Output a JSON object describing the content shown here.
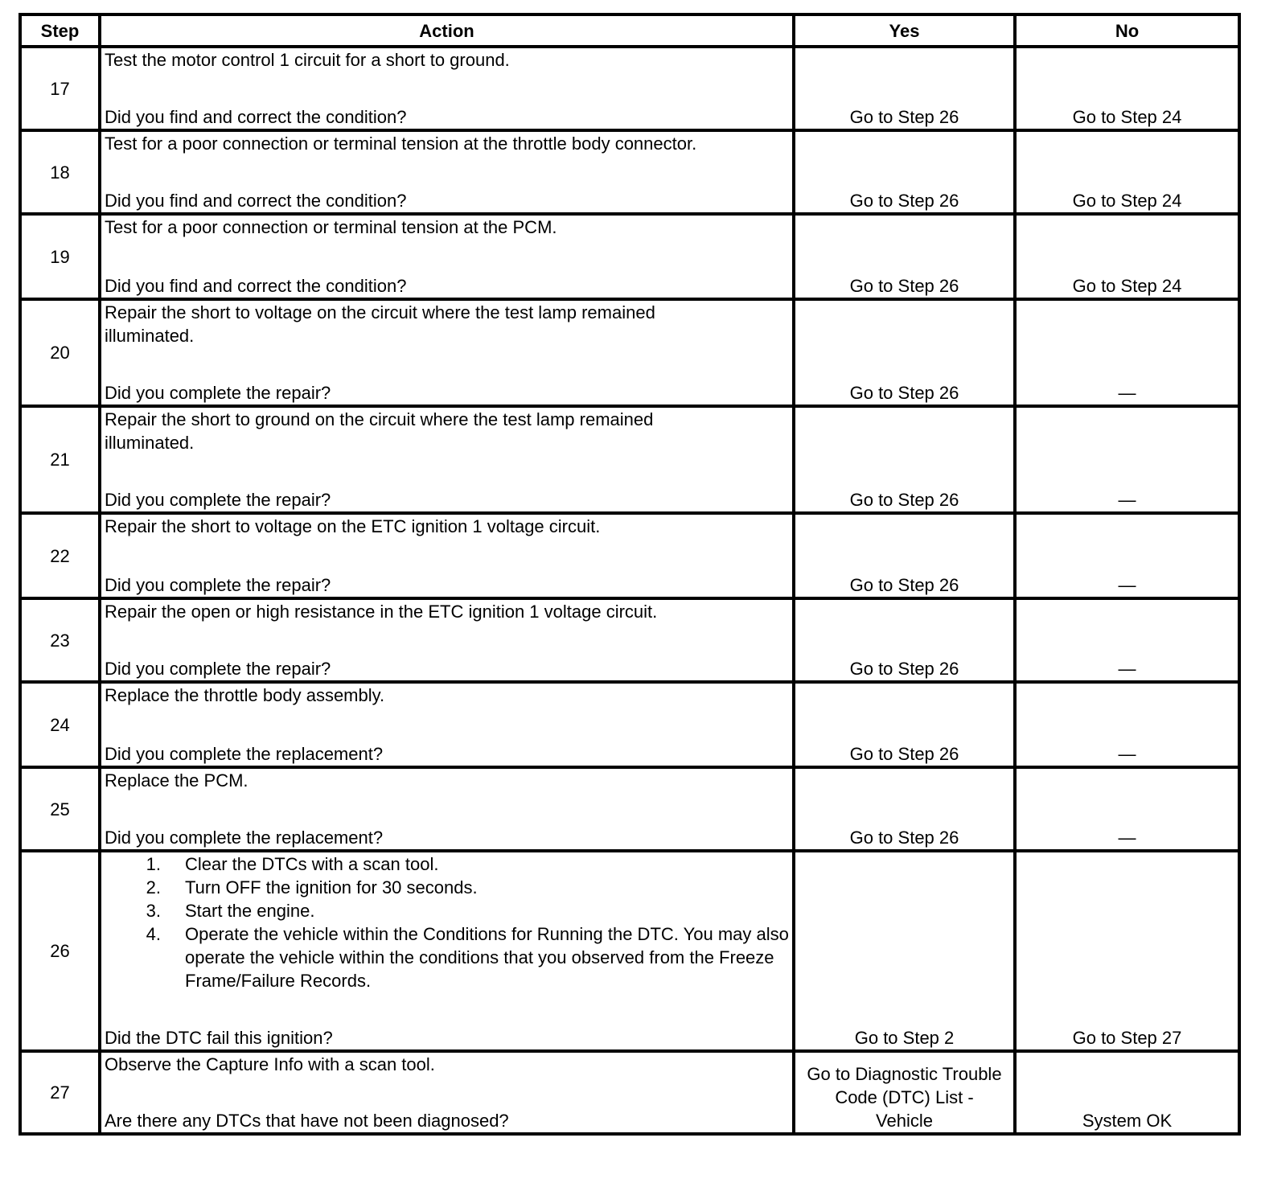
{
  "headers": {
    "step": "Step",
    "action": "Action",
    "yes": "Yes",
    "no": "No"
  },
  "rows": [
    {
      "step": "17",
      "action": [
        "Test the motor control 1 circuit for a short to ground."
      ],
      "question": "Did you find and correct the condition?",
      "yes": "Go to Step 26",
      "no": "Go to Step 24"
    },
    {
      "step": "18",
      "action": [
        "Test for a poor connection or terminal tension at the throttle body connector."
      ],
      "question": "Did you find and correct the condition?",
      "yes": "Go to Step 26",
      "no": "Go to Step 24"
    },
    {
      "step": "19",
      "action": [
        "Test for a poor connection or terminal tension at the PCM."
      ],
      "question": "Did you find and correct the condition?",
      "yes": "Go to Step 26",
      "no": "Go to Step 24"
    },
    {
      "step": "20",
      "action": [
        "Repair the short to voltage on the circuit where the test lamp remained illuminated."
      ],
      "question": "Did you complete the repair?",
      "yes": "Go to Step 26",
      "no": "—"
    },
    {
      "step": "21",
      "action": [
        "Repair the short to ground on the circuit where the test lamp remained illuminated."
      ],
      "question": "Did you complete the repair?",
      "yes": "Go to Step 26",
      "no": "—"
    },
    {
      "step": "22",
      "action": [
        "Repair the short to voltage on the ETC ignition 1 voltage circuit."
      ],
      "question": "Did you complete the repair?",
      "yes": "Go to Step 26",
      "no": "—"
    },
    {
      "step": "23",
      "action": [
        "Repair the open or high resistance in the ETC ignition 1 voltage circuit."
      ],
      "question": "Did you complete the repair?",
      "yes": "Go to Step 26",
      "no": "—"
    },
    {
      "step": "24",
      "action": [
        "Replace the throttle body assembly."
      ],
      "question": "Did you complete the replacement?",
      "yes": "Go to Step 26",
      "no": "—"
    },
    {
      "step": "25",
      "action": [
        "Replace the PCM."
      ],
      "question": "Did you complete the replacement?",
      "yes": "Go to Step 26",
      "no": "—"
    },
    {
      "step": "26",
      "list": [
        "Clear the DTCs with a scan tool.",
        "Turn OFF the ignition for 30 seconds.",
        "Start the engine.",
        "Operate the vehicle within the Conditions for Running the DTC. You may also operate the vehicle within the conditions that you observed from the Freeze Frame/Failure Records."
      ],
      "question": "Did the DTC fail this ignition?",
      "yes": "Go to Step 2",
      "no": "Go to Step 27"
    },
    {
      "step": "27",
      "action": [
        "Observe the Capture Info with a scan tool."
      ],
      "question": "Are there any DTCs that have not been diagnosed?",
      "yes": "Go to Diagnostic Trouble Code (DTC) List - Vehicle",
      "no": "System OK"
    }
  ]
}
